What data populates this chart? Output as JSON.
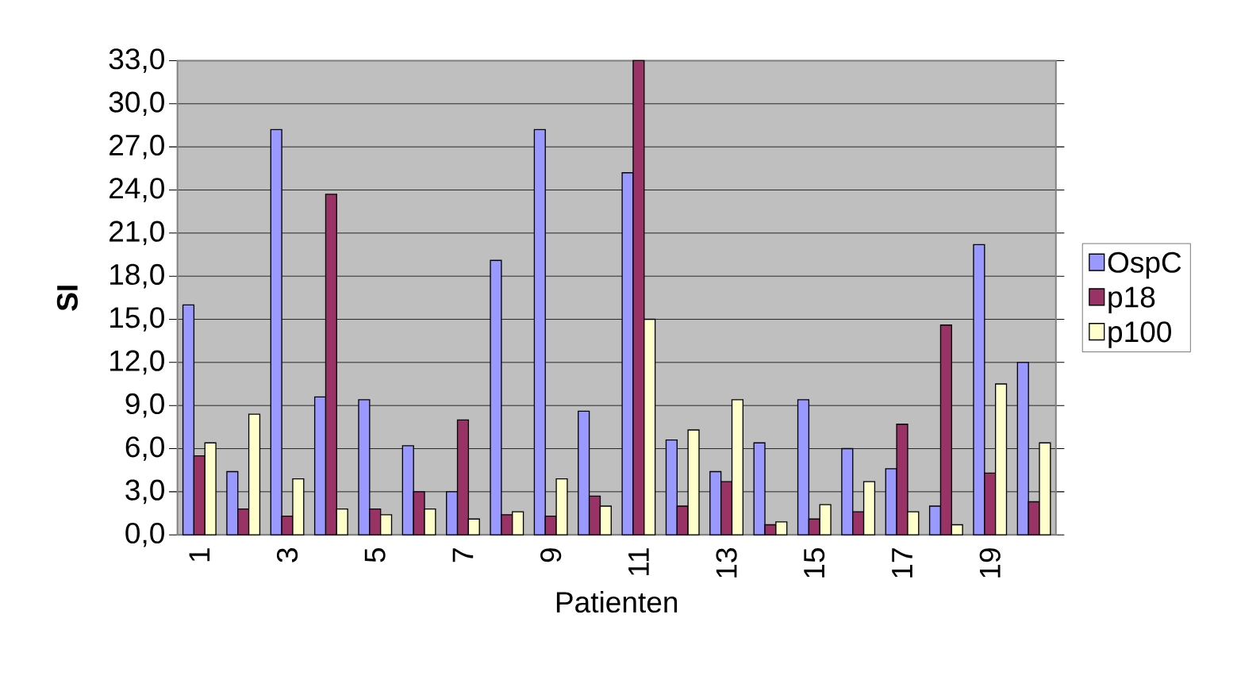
{
  "chart_data": {
    "type": "bar",
    "xlabel": "Patienten",
    "ylabel": "SI",
    "categories": [
      "1",
      null,
      "3",
      null,
      "5",
      null,
      "7",
      null,
      "9",
      null,
      "11",
      null,
      "13",
      null,
      "15",
      null,
      "17",
      null,
      "19",
      null
    ],
    "series": [
      {
        "name": "OspC",
        "color": "#9999ff",
        "values": [
          16.0,
          4.4,
          28.2,
          9.6,
          9.4,
          6.2,
          3.0,
          19.1,
          28.2,
          8.6,
          25.2,
          6.6,
          4.4,
          6.4,
          9.4,
          6.0,
          4.6,
          2.0,
          20.2,
          12.0
        ]
      },
      {
        "name": "p18",
        "color": "#993366",
        "values": [
          5.5,
          1.8,
          1.3,
          23.7,
          1.8,
          3.0,
          8.0,
          1.4,
          1.3,
          2.7,
          33.0,
          2.0,
          3.7,
          0.7,
          1.1,
          1.6,
          7.7,
          14.6,
          4.3,
          2.3
        ]
      },
      {
        "name": "p100",
        "color": "#ffffcc",
        "values": [
          6.4,
          8.4,
          3.9,
          1.8,
          1.4,
          1.8,
          1.1,
          1.6,
          3.9,
          2.0,
          15.0,
          7.3,
          9.4,
          0.9,
          2.1,
          3.7,
          1.6,
          0.7,
          10.5,
          6.4
        ]
      }
    ],
    "ylim": [
      0,
      33
    ],
    "yticks": [
      {
        "value": 0,
        "label": "0,0"
      },
      {
        "value": 3,
        "label": "3,0"
      },
      {
        "value": 6,
        "label": "6,0"
      },
      {
        "value": 9,
        "label": "9,0"
      },
      {
        "value": 12,
        "label": "12,0"
      },
      {
        "value": 15,
        "label": "15,0"
      },
      {
        "value": 18,
        "label": "18,0"
      },
      {
        "value": 21,
        "label": "21,0"
      },
      {
        "value": 24,
        "label": "24,0"
      },
      {
        "value": 27,
        "label": "27,0"
      },
      {
        "value": 30,
        "label": "30,0"
      },
      {
        "value": 33,
        "label": "33,0"
      }
    ],
    "grid": "y",
    "legend": "right"
  }
}
